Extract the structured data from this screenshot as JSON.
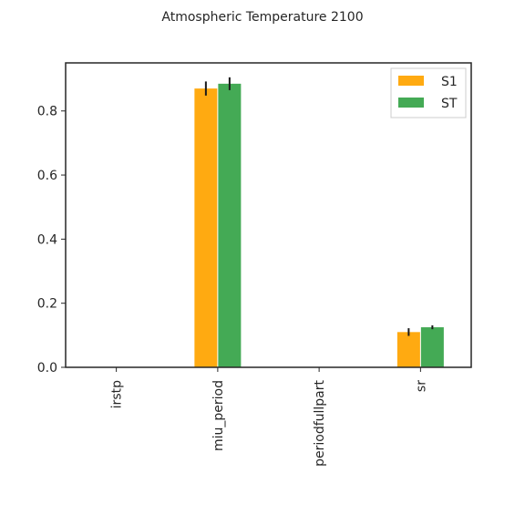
{
  "chart_data": {
    "type": "bar",
    "title": "Atmospheric Temperature 2100",
    "xlabel": "",
    "ylabel": "",
    "categories": [
      "irstp",
      "miu_period",
      "periodfullpart",
      "sr"
    ],
    "series": [
      {
        "name": "S1",
        "color": "#ffaa11",
        "values": [
          0.0,
          0.87,
          0.0,
          0.11
        ],
        "errors": [
          0.0,
          0.022,
          0.0,
          0.012
        ]
      },
      {
        "name": "ST",
        "color": "#44aa55",
        "values": [
          0.0,
          0.885,
          0.0,
          0.125
        ],
        "errors": [
          0.0,
          0.02,
          0.0,
          0.006
        ]
      }
    ],
    "ylim": [
      0,
      0.95
    ],
    "yticks": [
      0.0,
      0.2,
      0.4,
      0.6,
      0.8
    ],
    "ytick_labels": [
      "0.0",
      "0.2",
      "0.4",
      "0.6",
      "0.8"
    ],
    "grid": false,
    "legend_position": "top-right"
  }
}
